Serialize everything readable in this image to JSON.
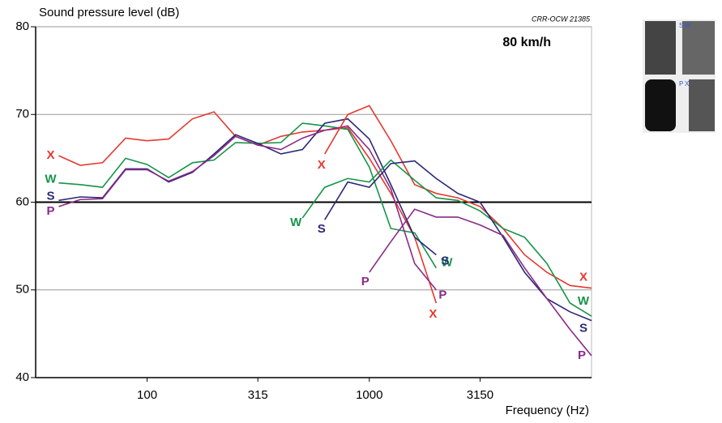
{
  "chart_data": {
    "type": "line",
    "title": "80 km/h",
    "y_label": "Sound pressure level (dB)",
    "x_label": "Frequency (Hz)",
    "code": "CRR-OCW 21385",
    "log_x": true,
    "xlim": [
      31.5,
      10000
    ],
    "xticks": [
      100,
      315,
      1000,
      3150
    ],
    "ylim": [
      40,
      80
    ],
    "yticks": [
      40,
      50,
      60,
      70,
      80
    ],
    "grid": true,
    "highlight_ytick": 60,
    "series": [
      {
        "name": "X",
        "color": "#e5392f",
        "x": [
          40,
          50,
          63,
          80,
          100,
          125,
          160,
          200,
          250,
          315,
          400,
          500,
          630,
          800,
          1000,
          1250,
          1600,
          2000
        ],
        "values": [
          65.3,
          64.2,
          64.5,
          67.3,
          67,
          67.2,
          69.5,
          70.3,
          67.5,
          66.5,
          67.5,
          68,
          68.2,
          68.5,
          65,
          61,
          56,
          48.5
        ]
      },
      {
        "name": "W",
        "color": "#17944a",
        "x": [
          40,
          50,
          63,
          80,
          100,
          125,
          160,
          200,
          250,
          315,
          400,
          500,
          630,
          800,
          1000,
          1250,
          1600,
          2000
        ],
        "values": [
          62.2,
          62,
          61.7,
          65,
          64.3,
          62.8,
          64.5,
          64.8,
          66.8,
          66.7,
          66.8,
          69,
          68.7,
          68.3,
          64,
          57,
          56.5,
          52.5
        ]
      },
      {
        "name": "S",
        "color": "#2c2878",
        "x": [
          40,
          50,
          63,
          80,
          100,
          125,
          160,
          200,
          250,
          315,
          400,
          500,
          630,
          800,
          1000,
          1250,
          1600,
          2000
        ],
        "values": [
          60.2,
          60.6,
          60.5,
          63.8,
          63.8,
          62.3,
          63.4,
          65.5,
          67.7,
          66.7,
          65.5,
          66,
          69,
          69.5,
          67.2,
          62,
          56,
          54
        ]
      },
      {
        "name": "P",
        "color": "#8a2a88",
        "x": [
          40,
          50,
          63,
          80,
          100,
          125,
          160,
          200,
          250,
          315,
          400,
          500,
          630,
          800,
          1000,
          1250,
          1600,
          2000
        ],
        "values": [
          59.5,
          60.3,
          60.4,
          63.7,
          63.7,
          62.4,
          63.5,
          65.3,
          67.5,
          66.5,
          66,
          67.3,
          68.2,
          68.7,
          66,
          61.5,
          53,
          50
        ]
      },
      {
        "name": "X",
        "color": "#e5392f",
        "x": [
          630,
          800,
          1000,
          1250,
          1600,
          2000,
          2500,
          3150,
          4000,
          5000,
          6300,
          8000,
          10000
        ],
        "values": [
          65.5,
          70,
          71,
          67,
          62,
          61,
          60.5,
          59.5,
          57,
          54,
          52,
          50.5,
          50.2
        ]
      },
      {
        "name": "W",
        "color": "#17944a",
        "x": [
          500,
          630,
          800,
          1000,
          1250,
          1600,
          2000,
          2500,
          3150,
          4000,
          5000,
          6300,
          8000,
          10000
        ],
        "values": [
          58.2,
          61.7,
          62.7,
          62.3,
          64.8,
          62.5,
          60.5,
          60.2,
          59,
          57,
          56,
          53,
          48.5,
          47
        ]
      },
      {
        "name": "S",
        "color": "#2c2878",
        "x": [
          630,
          800,
          1000,
          1250,
          1600,
          2000,
          2500,
          3150,
          4000,
          5000,
          6300,
          8000,
          10000
        ],
        "values": [
          58,
          62.3,
          61.7,
          64.4,
          64.7,
          62.7,
          61,
          60,
          56,
          52,
          49,
          47.5,
          46.5
        ]
      },
      {
        "name": "P",
        "color": "#8a2a88",
        "x": [
          1000,
          1250,
          1600,
          2000,
          2500,
          3150,
          4000,
          5000,
          6300,
          8000,
          10000
        ],
        "values": [
          52,
          55.5,
          59.2,
          58.3,
          58.3,
          57.4,
          56.2,
          52.5,
          49,
          45.5,
          42.5
        ]
      }
    ]
  },
  "inset": {
    "labels": [
      "S",
      "W",
      "P",
      "X"
    ]
  }
}
